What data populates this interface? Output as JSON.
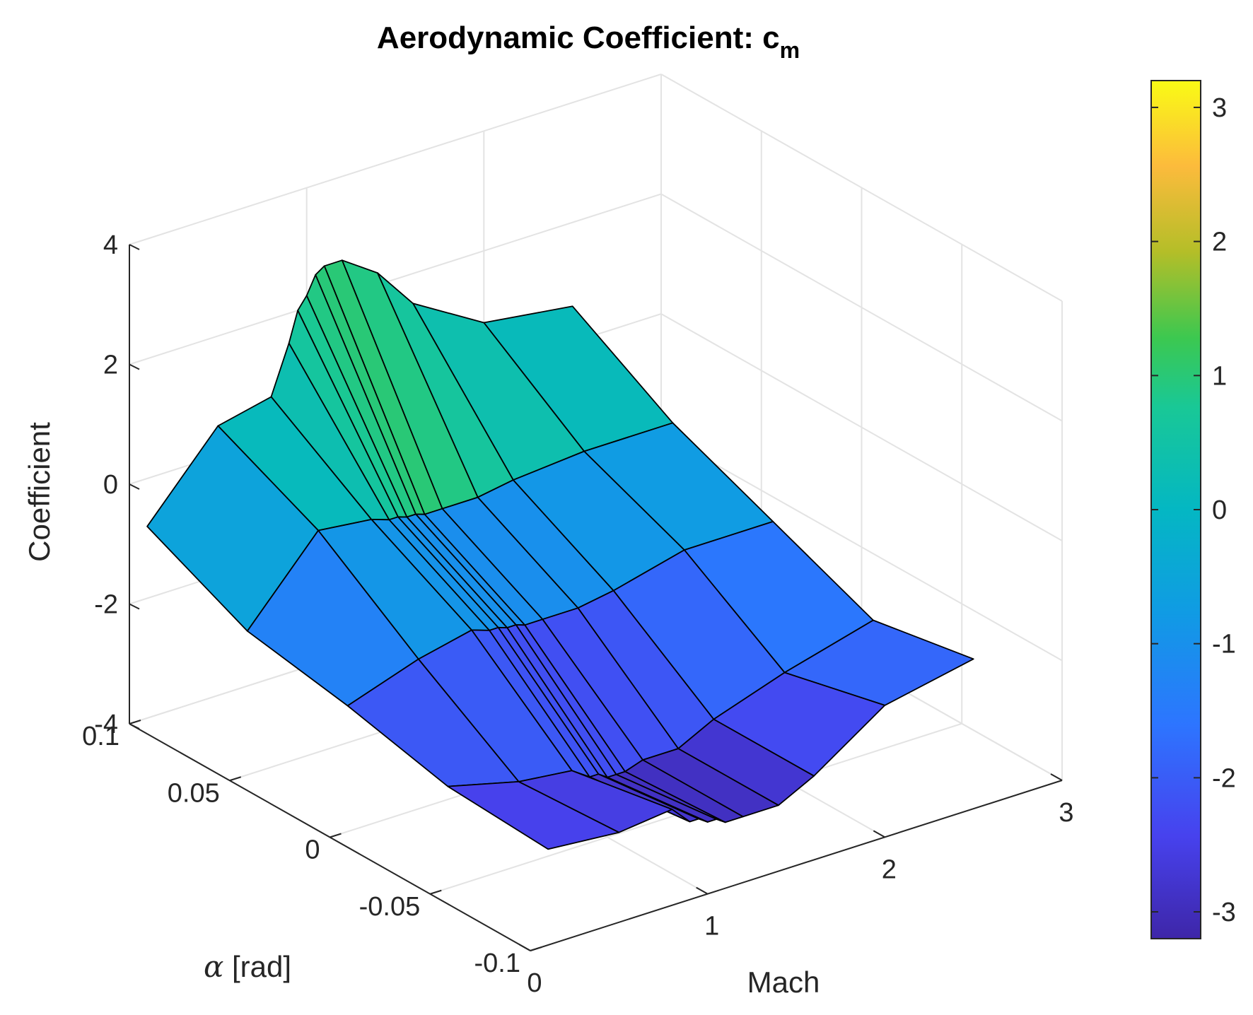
{
  "chart_data": {
    "type": "surface",
    "title": "Aerodynamic Coefficient: c",
    "title_subscript": "m",
    "xlabel": "Mach",
    "ylabel": "α [rad]",
    "ylabel_symbol": "α",
    "ylabel_rest": " [rad]",
    "zlabel": "Coefficient",
    "xlim": [
      0,
      3
    ],
    "ylim": [
      -0.1,
      0.1
    ],
    "zlim": [
      -4,
      4
    ],
    "x_ticks": [
      0,
      1,
      2,
      3
    ],
    "x_tick_labels": [
      "0",
      "1",
      "2",
      "3"
    ],
    "y_ticks": [
      -0.1,
      -0.05,
      0,
      0.05,
      0.1
    ],
    "y_tick_labels": [
      "-0.1",
      "-0.05",
      "0",
      "0.05",
      "0.1"
    ],
    "z_ticks": [
      -4,
      -2,
      0,
      2,
      4
    ],
    "z_tick_labels": [
      "-4",
      "-2",
      "0",
      "2",
      "4"
    ],
    "grid": true,
    "colormap": "parula",
    "colorbar": {
      "placement": "right",
      "limits": [
        -3.2,
        3.2
      ],
      "ticks": [
        -3,
        -2,
        -1,
        0,
        1,
        2,
        3
      ],
      "tick_labels": [
        "-3",
        "-2",
        "-1",
        "0",
        "1",
        "2",
        "3"
      ]
    },
    "mach": [
      0.1,
      0.5,
      0.8,
      0.9,
      0.95,
      1.0,
      1.05,
      1.1,
      1.2,
      1.4,
      1.6,
      2.0,
      2.5
    ],
    "alpha": [
      -0.1,
      -0.05,
      0,
      0.05,
      0.1
    ],
    "cm": [
      [
        -2.4,
        -2.3,
        -1.9,
        -1.6,
        -0.8
      ],
      [
        -2.5,
        -2.6,
        -1.5,
        -0.3,
        0.5
      ],
      [
        -2.4,
        -2.7,
        -1.3,
        -0.4,
        0.7
      ],
      [
        -2.7,
        -2.9,
        -1.4,
        -0.5,
        1.5
      ],
      [
        -2.7,
        -2.9,
        -1.4,
        -0.5,
        2.0
      ],
      [
        -2.8,
        -3.0,
        -1.45,
        -0.55,
        2.2
      ],
      [
        -2.8,
        -3.0,
        -1.45,
        -0.55,
        2.5
      ],
      [
        -2.9,
        -3.0,
        -1.5,
        -0.6,
        2.6
      ],
      [
        -2.9,
        -2.9,
        -1.5,
        -0.6,
        2.6
      ],
      [
        -2.9,
        -2.9,
        -1.5,
        -0.6,
        2.2
      ],
      [
        -2.6,
        -2.6,
        -1.4,
        -0.5,
        1.5
      ],
      [
        -1.8,
        -2.2,
        -1.1,
        -0.4,
        0.8
      ],
      [
        -1.5,
        -1.8,
        -1.1,
        -0.4,
        0.6
      ]
    ]
  }
}
